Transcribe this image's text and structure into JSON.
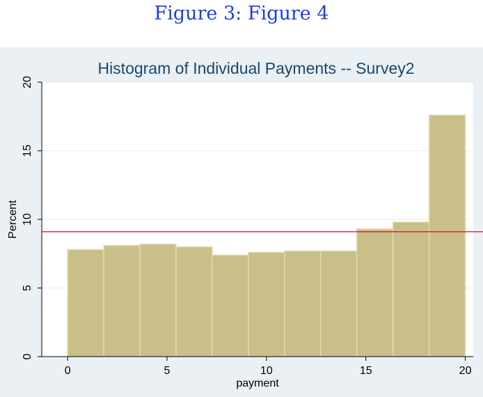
{
  "caption": "Figure 3: Figure 4",
  "colors": {
    "bar_fill": "#c8c088",
    "bar_stroke": "#e2dbb4",
    "reference_line": "#c8102e",
    "title": "#1a476f",
    "caption": "#1f3fd6",
    "panel_background": "#eaf0f3",
    "plot_background": "#ffffff"
  },
  "chart_data": {
    "type": "bar",
    "title": "Histogram of Individual Payments -- Survey2",
    "xlabel": "payment",
    "ylabel": "Percent",
    "xlim": [
      -1.3,
      20.4
    ],
    "ylim": [
      0,
      20
    ],
    "xticks": [
      0,
      5,
      10,
      15,
      20
    ],
    "yticks": [
      0,
      5,
      10,
      15,
      20
    ],
    "grid": true,
    "bins": [
      {
        "start": 0.0,
        "end": 1.818,
        "value": 7.8
      },
      {
        "start": 1.818,
        "end": 3.636,
        "value": 8.1
      },
      {
        "start": 3.636,
        "end": 5.455,
        "value": 8.2
      },
      {
        "start": 5.455,
        "end": 7.273,
        "value": 8.0
      },
      {
        "start": 7.273,
        "end": 9.091,
        "value": 7.4
      },
      {
        "start": 9.091,
        "end": 10.909,
        "value": 7.6
      },
      {
        "start": 10.909,
        "end": 12.727,
        "value": 7.7
      },
      {
        "start": 12.727,
        "end": 14.545,
        "value": 7.7
      },
      {
        "start": 14.545,
        "end": 16.364,
        "value": 9.3
      },
      {
        "start": 16.364,
        "end": 18.182,
        "value": 9.8
      },
      {
        "start": 18.182,
        "end": 20.0,
        "value": 17.6
      }
    ],
    "reference_line_y": 9.1
  }
}
